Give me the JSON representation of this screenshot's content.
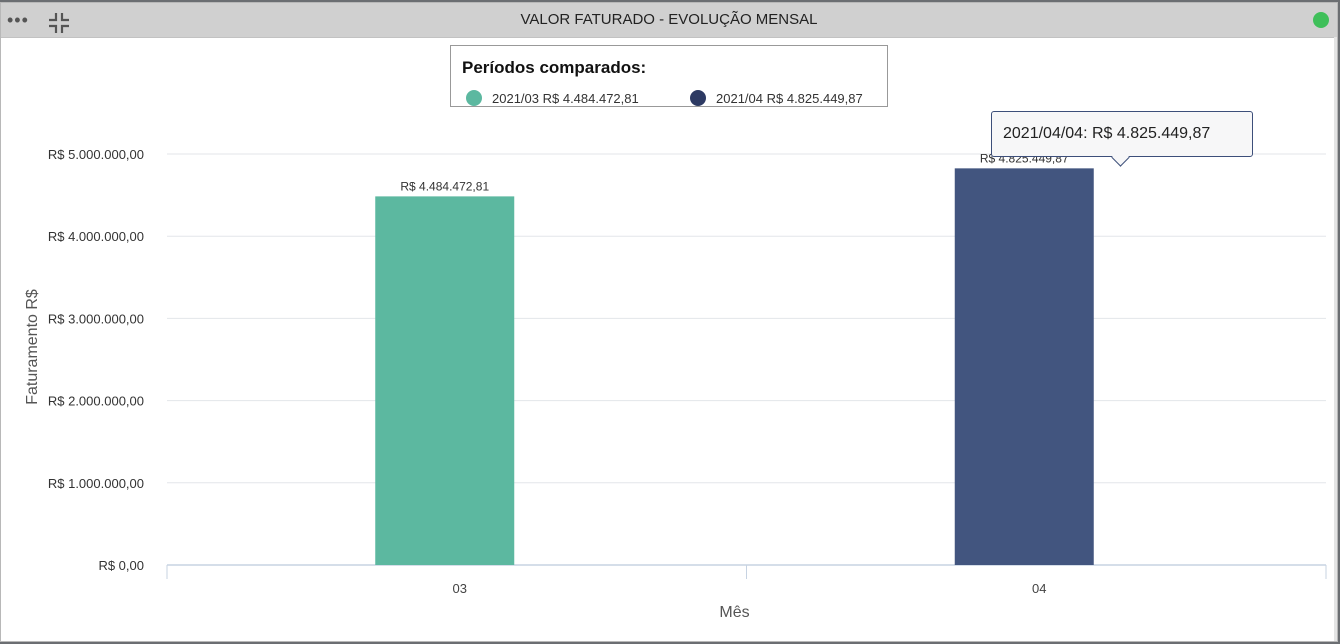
{
  "window": {
    "title": "VALOR FATURADO - EVOLUÇÃO MENSAL",
    "menu_icon": "more-dots-icon",
    "collapse_icon": "collapse-icon",
    "status_color": "#3fbf5a"
  },
  "legend": {
    "title": "Períodos comparados:",
    "items": [
      {
        "label": "2021/03 R$ 4.484.472,81",
        "color": "#5cb8a0"
      },
      {
        "label": "2021/04 R$ 4.825.449,87",
        "color": "#2d3a63"
      }
    ]
  },
  "tooltip": {
    "text": "2021/04/04: R$ 4.825.449,87"
  },
  "chart_data": {
    "type": "bar",
    "categories": [
      "03",
      "04"
    ],
    "values": [
      4484472.81,
      4825449.87
    ],
    "value_labels": [
      "R$ 4.484.472,81",
      "R$ 4.825.449,87"
    ],
    "colors": [
      "#5cb8a0",
      "#42557f"
    ],
    "xlabel": "Mês",
    "ylabel": "Faturamento R$",
    "ylim": [
      0,
      5000000
    ],
    "yticks": [
      0,
      1000000,
      2000000,
      3000000,
      4000000,
      5000000
    ],
    "ytick_labels": [
      "R$ 0,00",
      "R$ 1.000.000,00",
      "R$ 2.000.000,00",
      "R$ 3.000.000,00",
      "R$ 4.000.000,00",
      "R$ 5.000.000,00"
    ],
    "grid": true,
    "legend_position": "top-center"
  }
}
